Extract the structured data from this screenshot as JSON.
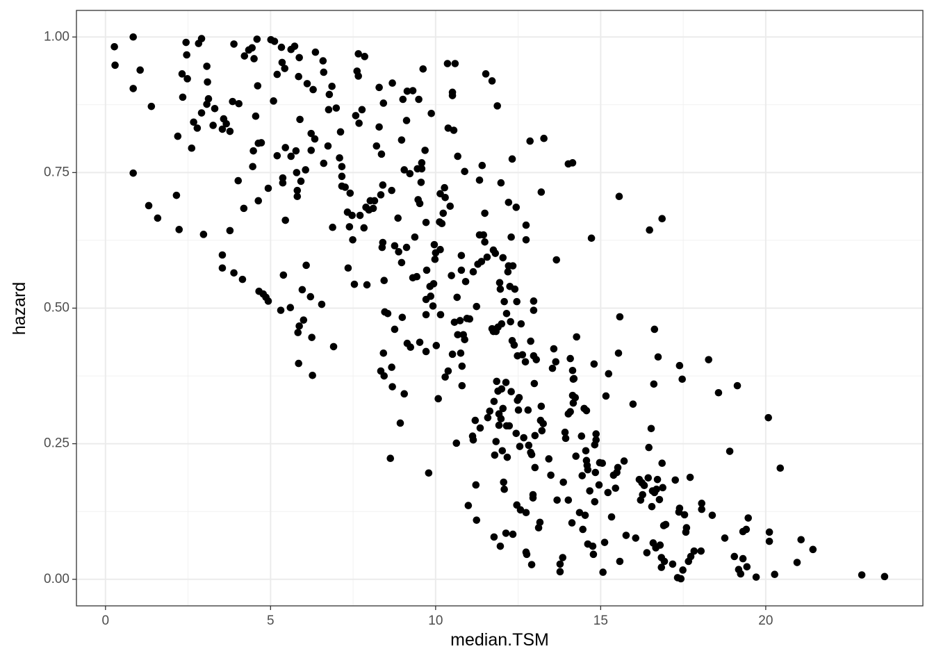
{
  "chart_data": {
    "type": "scatter",
    "x_label": "median.TSM",
    "y_label": "hazard",
    "color": "#000000",
    "grid": true,
    "xlim": [
      -0.88,
      24.76
    ],
    "ylim": [
      -0.049,
      1.049
    ],
    "xticks": [
      0,
      5,
      10,
      15,
      20
    ],
    "yticks": [
      {
        "value": 0,
        "label": "0.00"
      },
      {
        "value": 0.25,
        "label": "0.25"
      },
      {
        "value": 0.5,
        "label": "0.50"
      },
      {
        "value": 0.75,
        "label": "0.75"
      },
      {
        "value": 1,
        "label": "1.00"
      }
    ],
    "x": [
      0.27,
      0.29,
      0.84,
      0.84,
      0.84,
      1.05,
      1.31,
      1.39,
      1.58,
      2.15,
      2.19,
      2.23,
      2.32,
      2.34,
      2.44,
      2.46,
      2.48,
      2.61,
      2.67,
      2.78,
      2.82,
      2.91,
      2.91,
      2.97,
      3.07,
      3.09,
      3.12,
      3.07,
      3.26,
      3.31,
      3.54,
      3.58,
      3.54,
      3.54,
      3.66,
      3.77,
      3.77,
      3.85,
      3.89,
      3.89,
      4.02,
      4.04,
      4.15,
      4.19,
      4.21,
      4.34,
      4.44,
      4.48,
      4.46,
      4.5,
      4.55,
      4.59,
      4.61,
      4.63,
      4.63,
      4.65,
      4.72,
      4.78,
      4.86,
      4.93,
      4.93,
      5.01,
      5.09,
      5.12,
      5.2,
      5.2,
      5.31,
      5.33,
      5.35,
      5.37,
      5.37,
      5.39,
      5.43,
      5.45,
      5.45,
      5.6,
      5.62,
      5.62,
      5.73,
      5.77,
      5.79,
      5.81,
      5.81,
      5.83,
      5.87,
      5.85,
      5.87,
      5.85,
      5.89,
      5.92,
      5.96,
      6.06,
      6.0,
      6.08,
      6.11,
      6.21,
      6.23,
      6.23,
      6.25,
      6.27,
      6.29,
      6.34,
      6.36,
      6.55,
      6.59,
      6.61,
      6.61,
      6.74,
      6.76,
      6.78,
      6.86,
      6.88,
      6.91,
      6.99,
      7.09,
      7.12,
      7.16,
      7.16,
      7.16,
      7.26,
      7.33,
      7.35,
      7.39,
      7.41,
      7.47,
      7.49,
      7.54,
      7.58,
      7.62,
      7.66,
      7.66,
      7.68,
      7.71,
      7.77,
      7.83,
      7.85,
      7.89,
      7.92,
      7.98,
      8.02,
      8.11,
      8.15,
      8.21,
      8.29,
      8.29,
      8.34,
      8.34,
      8.36,
      8.38,
      8.4,
      8.4,
      8.42,
      8.42,
      8.44,
      8.44,
      8.46,
      8.55,
      8.63,
      8.67,
      8.67,
      8.69,
      8.69,
      8.76,
      8.76,
      8.86,
      8.88,
      8.93,
      8.97,
      8.97,
      8.99,
      9.01,
      9.05,
      9.05,
      9.12,
      9.12,
      9.14,
      9.14,
      9.22,
      9.24,
      9.31,
      9.31,
      9.37,
      9.43,
      9.45,
      9.47,
      9.49,
      9.52,
      9.52,
      9.56,
      9.58,
      9.58,
      9.62,
      9.68,
      9.71,
      9.71,
      9.71,
      9.71,
      9.73,
      9.79,
      9.83,
      9.85,
      9.87,
      9.92,
      9.94,
      9.96,
      9.98,
      10.0,
      10.02,
      10.08,
      10.12,
      10.14,
      10.14,
      10.15,
      10.19,
      10.23,
      10.27,
      10.29,
      10.29,
      10.36,
      10.38,
      10.38,
      10.44,
      10.48,
      10.51,
      10.51,
      10.51,
      10.55,
      10.57,
      10.59,
      10.63,
      10.65,
      10.67,
      10.67,
      10.74,
      10.76,
      10.78,
      10.78,
      10.8,
      10.8,
      10.84,
      10.88,
      10.88,
      10.91,
      10.95,
      10.99,
      11.03,
      11.12,
      11.14,
      11.14,
      11.2,
      11.24,
      11.24,
      11.22,
      11.28,
      11.33,
      11.33,
      11.35,
      11.39,
      11.41,
      11.45,
      11.49,
      11.49,
      11.52,
      11.56,
      11.58,
      11.64,
      11.71,
      11.71,
      11.75,
      11.77,
      11.77,
      11.75,
      11.79,
      11.81,
      11.83,
      11.83,
      11.85,
      11.87,
      11.89,
      11.89,
      11.92,
      11.92,
      11.94,
      11.96,
      11.96,
      11.98,
      11.98,
      12.0,
      12.0,
      12.02,
      12.04,
      12.04,
      12.06,
      12.08,
      12.08,
      12.13,
      12.13,
      12.15,
      12.15,
      12.17,
      12.19,
      12.21,
      12.21,
      12.23,
      12.25,
      12.27,
      12.29,
      12.29,
      12.32,
      12.32,
      12.34,
      12.34,
      12.38,
      12.4,
      12.44,
      12.44,
      12.46,
      12.46,
      12.48,
      12.48,
      12.51,
      12.53,
      12.55,
      12.57,
      12.59,
      12.63,
      12.67,
      12.72,
      12.74,
      12.74,
      12.74,
      12.74,
      12.76,
      12.8,
      12.82,
      12.86,
      12.88,
      12.88,
      12.91,
      12.91,
      12.95,
      12.95,
      12.97,
      12.97,
      12.97,
      12.99,
      13.01,
      13.01,
      13.05,
      13.12,
      13.16,
      13.18,
      13.2,
      13.2,
      13.22,
      13.26,
      13.28,
      13.43,
      13.49,
      13.54,
      13.58,
      13.64,
      13.66,
      13.68,
      13.77,
      13.77,
      13.85,
      13.87,
      13.92,
      13.94,
      14.02,
      14.02,
      14.02,
      14.08,
      14.08,
      14.13,
      14.15,
      14.15,
      14.15,
      14.17,
      14.17,
      14.19,
      14.23,
      14.25,
      14.27,
      14.36,
      14.42,
      14.44,
      14.46,
      14.5,
      14.53,
      14.55,
      14.57,
      14.57,
      14.59,
      14.61,
      14.61,
      14.67,
      14.72,
      14.76,
      14.78,
      14.8,
      14.82,
      14.82,
      14.84,
      14.86,
      14.86,
      14.95,
      14.97,
      15.05,
      15.07,
      15.12,
      15.16,
      15.22,
      15.24,
      15.33,
      15.39,
      15.45,
      15.49,
      15.52,
      15.54,
      15.56,
      15.58,
      15.58,
      15.71,
      15.77,
      15.98,
      16.06,
      16.17,
      16.21,
      16.25,
      16.27,
      16.32,
      16.4,
      16.44,
      16.46,
      16.48,
      16.53,
      16.55,
      16.57,
      16.59,
      16.61,
      16.63,
      16.63,
      16.67,
      16.69,
      16.72,
      16.74,
      16.78,
      16.8,
      16.84,
      16.84,
      16.86,
      16.86,
      16.88,
      16.91,
      16.93,
      16.97,
      17.18,
      17.26,
      17.33,
      17.37,
      17.39,
      17.39,
      17.43,
      17.47,
      17.49,
      17.54,
      17.58,
      17.6,
      17.66,
      17.71,
      17.73,
      17.83,
      18.04,
      18.06,
      18.06,
      18.27,
      18.38,
      18.57,
      18.76,
      18.91,
      19.05,
      19.14,
      19.18,
      19.24,
      19.31,
      19.31,
      19.41,
      19.43,
      19.47,
      19.71,
      20.08,
      20.11,
      20.11,
      20.27,
      20.44,
      20.95,
      21.07,
      21.43,
      22.91,
      23.6
    ],
    "values": [
      0.982,
      0.948,
      1.0,
      0.905,
      0.749,
      0.939,
      0.689,
      0.872,
      0.666,
      0.708,
      0.817,
      0.645,
      0.932,
      0.889,
      0.99,
      0.967,
      0.923,
      0.795,
      0.843,
      0.832,
      0.988,
      0.997,
      0.86,
      0.636,
      0.946,
      0.917,
      0.886,
      0.876,
      0.837,
      0.868,
      0.83,
      0.849,
      0.598,
      0.574,
      0.84,
      0.826,
      0.643,
      0.881,
      0.987,
      0.565,
      0.735,
      0.877,
      0.553,
      0.684,
      0.965,
      0.976,
      0.98,
      0.79,
      0.761,
      0.96,
      0.854,
      0.996,
      0.91,
      0.804,
      0.698,
      0.531,
      0.805,
      0.526,
      0.52,
      0.513,
      0.721,
      0.995,
      0.882,
      0.992,
      0.781,
      0.931,
      0.496,
      0.981,
      0.953,
      0.74,
      0.731,
      0.561,
      0.942,
      0.796,
      0.662,
      0.501,
      0.977,
      0.78,
      0.983,
      0.79,
      0.75,
      0.717,
      0.706,
      0.455,
      0.467,
      0.398,
      0.962,
      0.927,
      0.848,
      0.734,
      0.534,
      0.755,
      0.478,
      0.579,
      0.914,
      0.521,
      0.791,
      0.822,
      0.446,
      0.376,
      0.903,
      0.812,
      0.972,
      0.507,
      0.956,
      0.935,
      0.767,
      0.799,
      0.866,
      0.894,
      0.909,
      0.649,
      0.429,
      0.869,
      0.777,
      0.825,
      0.761,
      0.743,
      0.725,
      0.723,
      0.677,
      0.574,
      0.65,
      0.712,
      0.671,
      0.626,
      0.544,
      0.855,
      0.937,
      0.928,
      0.969,
      0.841,
      0.671,
      0.866,
      0.648,
      0.964,
      0.686,
      0.543,
      0.681,
      0.698,
      0.684,
      0.698,
      0.799,
      0.907,
      0.834,
      0.709,
      0.384,
      0.784,
      0.612,
      0.727,
      0.621,
      0.878,
      0.417,
      0.375,
      0.551,
      0.493,
      0.49,
      0.223,
      0.717,
      0.391,
      0.915,
      0.355,
      0.615,
      0.461,
      0.666,
      0.604,
      0.288,
      0.81,
      0.584,
      0.483,
      0.885,
      0.342,
      0.755,
      0.612,
      0.846,
      0.435,
      0.9,
      0.748,
      0.428,
      0.901,
      0.556,
      0.631,
      0.558,
      0.757,
      0.7,
      0.885,
      0.693,
      0.437,
      0.732,
      0.768,
      0.757,
      0.941,
      0.791,
      0.488,
      0.516,
      0.42,
      0.658,
      0.57,
      0.196,
      0.54,
      0.522,
      0.859,
      0.504,
      0.545,
      0.617,
      0.59,
      0.602,
      0.431,
      0.333,
      0.659,
      0.608,
      0.711,
      0.488,
      0.656,
      0.675,
      0.722,
      0.704,
      0.373,
      0.951,
      0.832,
      0.384,
      0.688,
      0.56,
      0.898,
      0.892,
      0.415,
      0.828,
      0.474,
      0.951,
      0.251,
      0.52,
      0.78,
      0.451,
      0.477,
      0.417,
      0.57,
      0.597,
      0.393,
      0.357,
      0.451,
      0.442,
      0.752,
      0.549,
      0.481,
      0.136,
      0.48,
      0.264,
      0.257,
      0.567,
      0.293,
      0.503,
      0.109,
      0.174,
      0.581,
      0.635,
      0.736,
      0.279,
      0.586,
      0.763,
      0.635,
      0.675,
      0.622,
      0.932,
      0.594,
      0.298,
      0.31,
      0.919,
      0.462,
      0.607,
      0.328,
      0.078,
      0.457,
      0.229,
      0.601,
      0.254,
      0.457,
      0.365,
      0.873,
      0.465,
      0.347,
      0.305,
      0.284,
      0.547,
      0.535,
      0.061,
      0.731,
      0.296,
      0.471,
      0.351,
      0.237,
      0.593,
      0.315,
      0.179,
      0.512,
      0.166,
      0.363,
      0.085,
      0.49,
      0.283,
      0.225,
      0.567,
      0.695,
      0.578,
      0.283,
      0.54,
      0.475,
      0.346,
      0.631,
      0.775,
      0.44,
      0.578,
      0.083,
      0.432,
      0.535,
      0.686,
      0.269,
      0.137,
      0.512,
      0.412,
      0.33,
      0.312,
      0.335,
      0.245,
      0.128,
      0.471,
      0.414,
      0.261,
      0.401,
      0.653,
      0.626,
      0.123,
      0.05,
      0.046,
      0.312,
      0.247,
      0.808,
      0.439,
      0.234,
      0.23,
      0.027,
      0.156,
      0.15,
      0.412,
      0.513,
      0.496,
      0.361,
      0.265,
      0.206,
      0.405,
      0.095,
      0.105,
      0.293,
      0.319,
      0.714,
      0.274,
      0.287,
      0.813,
      0.222,
      0.192,
      0.389,
      0.425,
      0.401,
      0.589,
      0.146,
      0.014,
      0.028,
      0.04,
      0.179,
      0.271,
      0.26,
      0.305,
      0.146,
      0.766,
      0.407,
      0.309,
      0.104,
      0.768,
      0.339,
      0.385,
      0.369,
      0.325,
      0.37,
      0.335,
      0.227,
      0.447,
      0.123,
      0.264,
      0.191,
      0.092,
      0.315,
      0.118,
      0.237,
      0.311,
      0.219,
      0.21,
      0.202,
      0.065,
      0.163,
      0.629,
      0.061,
      0.046,
      0.397,
      0.248,
      0.143,
      0.197,
      0.268,
      0.257,
      0.174,
      0.215,
      0.214,
      0.013,
      0.068,
      0.338,
      0.16,
      0.379,
      0.115,
      0.192,
      0.168,
      0.197,
      0.206,
      0.417,
      0.706,
      0.033,
      0.484,
      0.218,
      0.081,
      0.323,
      0.076,
      0.184,
      0.146,
      0.178,
      0.156,
      0.173,
      0.049,
      0.187,
      0.243,
      0.644,
      0.278,
      0.134,
      0.163,
      0.067,
      0.36,
      0.16,
      0.461,
      0.058,
      0.166,
      0.184,
      0.41,
      0.147,
      0.063,
      0.04,
      0.022,
      0.665,
      0.214,
      0.169,
      0.099,
      0.033,
      0.101,
      0.028,
      0.183,
      0.003,
      0.124,
      0.131,
      0.394,
      0.001,
      0.369,
      0.017,
      0.119,
      0.087,
      0.095,
      0.033,
      0.188,
      0.042,
      0.052,
      0.052,
      0.14,
      0.129,
      0.405,
      0.118,
      0.344,
      0.076,
      0.236,
      0.042,
      0.357,
      0.018,
      0.01,
      0.038,
      0.088,
      0.092,
      0.023,
      0.113,
      0.004,
      0.298,
      0.087,
      0.07,
      0.009,
      0.205,
      0.031,
      0.073,
      0.055,
      0.008,
      0.005
    ]
  }
}
